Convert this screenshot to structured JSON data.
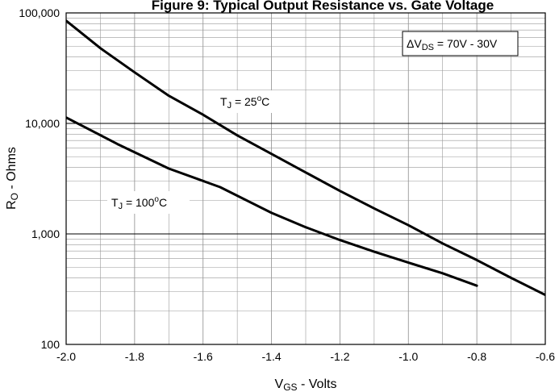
{
  "colors": {
    "background": "#ffffff",
    "grid": "#999999",
    "grid_major": "#000000",
    "series": "#000000"
  },
  "chart_data": {
    "type": "line",
    "title": "Figure 9: Typical Output Resistance vs. Gate Voltage",
    "xlabel": {
      "main": "V",
      "sub": "GS",
      "suffix": " - Volts"
    },
    "ylabel": {
      "main": "R",
      "sub": "O",
      "suffix": " - Ohms"
    },
    "x_scale": "linear",
    "y_scale": "log",
    "xlim": [
      -2.0,
      -0.6
    ],
    "ylim": [
      100,
      100000
    ],
    "x_ticks": [
      -2.0,
      -1.8,
      -1.6,
      -1.4,
      -1.2,
      -1.0,
      -0.8,
      -0.6
    ],
    "x_tick_labels": [
      "-2.0",
      "-1.8",
      "-1.6",
      "-1.4",
      "-1.2",
      "-1.0",
      "-0.8",
      "-0.6"
    ],
    "y_ticks": [
      100,
      1000,
      10000,
      100000
    ],
    "y_tick_labels": [
      "100",
      "1,000",
      "10,000",
      "100,000"
    ],
    "grid": true,
    "series": [
      {
        "x": [
          -2.0,
          -1.9,
          -1.8,
          -1.7,
          -1.6,
          -1.5,
          -1.4,
          -1.3,
          -1.2,
          -1.1,
          -1.0,
          -0.9,
          -0.8,
          -0.7,
          -0.6
        ],
        "y": [
          85000,
          48000,
          29000,
          17800,
          12000,
          7800,
          5300,
          3600,
          2450,
          1700,
          1200,
          820,
          580,
          400,
          280
        ]
      },
      {
        "x": [
          -2.0,
          -1.85,
          -1.7,
          -1.55,
          -1.4,
          -1.3,
          -1.2,
          -1.1,
          -1.0,
          -0.9,
          -0.8
        ],
        "y": [
          11300,
          6500,
          3900,
          2650,
          1550,
          1150,
          880,
          690,
          550,
          440,
          340
        ]
      }
    ],
    "annotations": [
      {
        "id": "delta-vds",
        "main": "ΔV",
        "sub": "DS",
        "suffix": " = 70V - 30V",
        "boxed": true
      },
      {
        "id": "tj-25",
        "main": "T",
        "sub": "J",
        "mid": " = 25",
        "sup": "o",
        "suffix": "C"
      },
      {
        "id": "tj-100",
        "main": "T",
        "sub": "J",
        "mid": " = 100",
        "sup": "o",
        "suffix": "C"
      }
    ]
  }
}
